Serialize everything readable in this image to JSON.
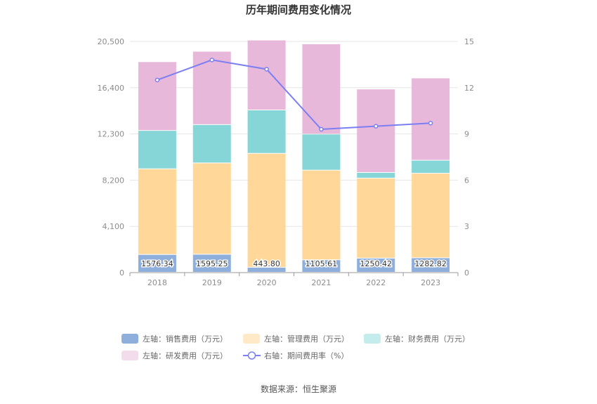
{
  "chart_data": {
    "type": "bar",
    "stacked": true,
    "title": "历年期间费用变化情况",
    "categories": [
      "2018",
      "2019",
      "2020",
      "2021",
      "2022",
      "2023"
    ],
    "left_axis": {
      "ylim": [
        0,
        20500
      ],
      "ticks": [
        "0",
        "4,100",
        "8,200",
        "12,300",
        "16,400",
        "20,500"
      ]
    },
    "right_axis": {
      "ylim": [
        0,
        15
      ],
      "ticks": [
        "0",
        "3",
        "6",
        "9",
        "12",
        "15"
      ]
    },
    "series": [
      {
        "name": "左轴：销售费用（万元）",
        "color": "#8eaedb",
        "axis": "left",
        "type": "bar",
        "values": [
          1576.34,
          1595.25,
          443.8,
          1105.61,
          1250.42,
          1282.82
        ],
        "labels": [
          "1576.34",
          "1595.25",
          "443.80",
          "1105.61",
          "1250.42",
          "1282.82"
        ]
      },
      {
        "name": "左轴：管理费用（万元）",
        "color": "#ffd899",
        "axis": "left",
        "type": "bar",
        "values": [
          7600,
          8100,
          10100,
          7950,
          7100,
          7500
        ]
      },
      {
        "name": "左轴：财务费用（万元）",
        "color": "#86d6d8",
        "axis": "left",
        "type": "bar",
        "values": [
          3400,
          3400,
          3850,
          3200,
          500,
          1150
        ]
      },
      {
        "name": "左轴：研发费用（万元）",
        "color": "#e7b8da",
        "axis": "left",
        "type": "bar",
        "values": [
          6100,
          6500,
          6200,
          8000,
          7400,
          7300
        ]
      },
      {
        "name": "右轴：期间费用率（%）",
        "color": "#7b7ff2",
        "axis": "right",
        "type": "line",
        "values": [
          12.5,
          13.8,
          13.2,
          9.3,
          9.5,
          9.7
        ]
      }
    ],
    "legend_position": "bottom",
    "grid": true,
    "source": "数据来源：恒生聚源"
  }
}
